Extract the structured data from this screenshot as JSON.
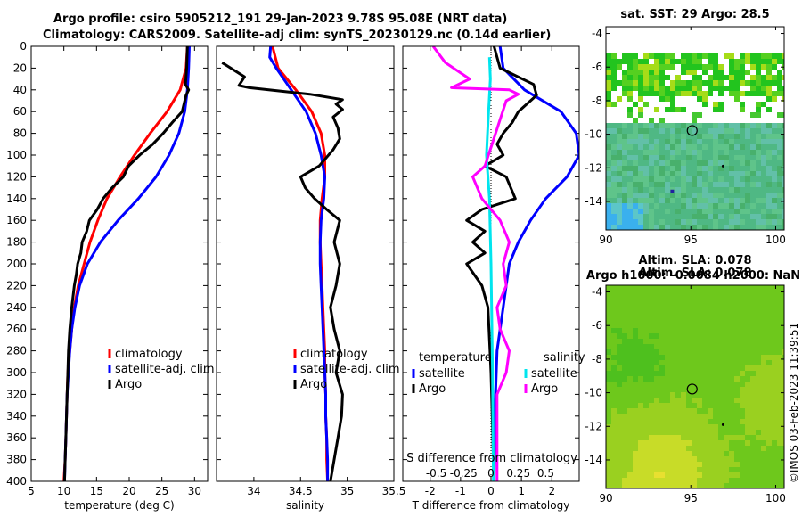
{
  "title": {
    "line1": "Argo profile: csiro 5905212_191 29-Jan-2023 9.78S 95.08E (NRT data)",
    "line2": "Climatology: CARS2009. Satellite-adj clim: synTS_20230129.nc (0.14d earlier)"
  },
  "stamp": "©IMOS 03-Feb-2023 11:39:51",
  "colors": {
    "climatology": "#ff0000",
    "satellite": "#0000ff",
    "argo": "#000000",
    "sal_satellite": "#00e5ee",
    "sal_argo": "#ff00ff"
  },
  "chart_data": [
    {
      "type": "line",
      "id": "temperature",
      "xlabel": "temperature (deg C)",
      "xlim": [
        5,
        32
      ],
      "xticks": [
        5,
        10,
        15,
        20,
        25,
        30
      ],
      "ylim": [
        0,
        400
      ],
      "yticks": [
        0,
        20,
        40,
        60,
        80,
        100,
        120,
        140,
        160,
        180,
        200,
        220,
        240,
        260,
        280,
        300,
        320,
        340,
        360,
        380,
        400
      ],
      "legend": [
        "climatology",
        "satellite-adj. clim",
        "Argo"
      ],
      "series": [
        {
          "name": "climatology",
          "color": "#ff0000",
          "points": [
            [
              28.9,
              0
            ],
            [
              28.7,
              20
            ],
            [
              27.8,
              40
            ],
            [
              25.8,
              60
            ],
            [
              23.2,
              80
            ],
            [
              20.8,
              100
            ],
            [
              18.6,
              120
            ],
            [
              16.6,
              140
            ],
            [
              15.2,
              160
            ],
            [
              14.0,
              180
            ],
            [
              13.1,
              200
            ],
            [
              12.2,
              220
            ],
            [
              11.6,
              240
            ],
            [
              11.2,
              260
            ],
            [
              10.9,
              280
            ],
            [
              10.6,
              300
            ],
            [
              10.5,
              320
            ],
            [
              10.4,
              340
            ],
            [
              10.3,
              360
            ],
            [
              10.2,
              380
            ],
            [
              10.0,
              400
            ]
          ]
        },
        {
          "name": "satellite-adj. clim",
          "color": "#0000ff",
          "points": [
            [
              29.2,
              0
            ],
            [
              29.1,
              20
            ],
            [
              28.9,
              40
            ],
            [
              28.5,
              60
            ],
            [
              27.6,
              80
            ],
            [
              26.1,
              100
            ],
            [
              24.1,
              120
            ],
            [
              21.4,
              140
            ],
            [
              18.3,
              160
            ],
            [
              15.6,
              180
            ],
            [
              13.6,
              200
            ],
            [
              12.4,
              220
            ],
            [
              11.7,
              240
            ],
            [
              11.2,
              260
            ],
            [
              10.9,
              280
            ],
            [
              10.7,
              300
            ],
            [
              10.5,
              320
            ],
            [
              10.4,
              340
            ],
            [
              10.3,
              360
            ],
            [
              10.2,
              380
            ],
            [
              10.1,
              400
            ]
          ]
        },
        {
          "name": "Argo",
          "color": "#000000",
          "points": [
            [
              28.9,
              0
            ],
            [
              28.8,
              20
            ],
            [
              28.6,
              35
            ],
            [
              29.1,
              40
            ],
            [
              28.7,
              45
            ],
            [
              28.1,
              60
            ],
            [
              26.6,
              70
            ],
            [
              25.2,
              80
            ],
            [
              23.6,
              90
            ],
            [
              21.6,
              100
            ],
            [
              19.9,
              110
            ],
            [
              19.1,
              120
            ],
            [
              17.4,
              130
            ],
            [
              16.0,
              140
            ],
            [
              15.1,
              150
            ],
            [
              13.9,
              160
            ],
            [
              13.5,
              170
            ],
            [
              12.8,
              180
            ],
            [
              12.6,
              190
            ],
            [
              12.1,
              200
            ],
            [
              11.9,
              210
            ],
            [
              11.6,
              220
            ],
            [
              11.2,
              240
            ],
            [
              10.9,
              260
            ],
            [
              10.7,
              280
            ],
            [
              10.6,
              300
            ],
            [
              10.5,
              320
            ],
            [
              10.4,
              340
            ],
            [
              10.3,
              360
            ],
            [
              10.2,
              380
            ],
            [
              10.1,
              400
            ]
          ]
        }
      ]
    },
    {
      "type": "line",
      "id": "salinity",
      "xlabel": "salinity",
      "xlim": [
        33.6,
        35.5
      ],
      "xticks": [
        34,
        34.5,
        35
      ],
      "xticklabels": [
        "34",
        "34.5",
        "35"
      ],
      "xticks_extra": [
        {
          "v": 35.5,
          "label": "35.5"
        }
      ],
      "ylim": [
        0,
        400
      ],
      "legend": [
        "climatology",
        "satellite-adj. clim",
        "Argo"
      ],
      "series": [
        {
          "name": "climatology",
          "color": "#ff0000",
          "points": [
            [
              34.2,
              0
            ],
            [
              34.26,
              20
            ],
            [
              34.45,
              40
            ],
            [
              34.62,
              60
            ],
            [
              34.72,
              80
            ],
            [
              34.76,
              100
            ],
            [
              34.76,
              120
            ],
            [
              34.73,
              140
            ],
            [
              34.71,
              160
            ],
            [
              34.71,
              180
            ],
            [
              34.72,
              200
            ],
            [
              34.73,
              220
            ],
            [
              34.74,
              240
            ],
            [
              34.75,
              260
            ],
            [
              34.76,
              280
            ],
            [
              34.76,
              300
            ],
            [
              34.77,
              320
            ],
            [
              34.77,
              340
            ],
            [
              34.78,
              360
            ],
            [
              34.78,
              380
            ],
            [
              34.79,
              400
            ]
          ]
        },
        {
          "name": "satellite-adj. clim",
          "color": "#0000ff",
          "points": [
            [
              34.18,
              0
            ],
            [
              34.17,
              10
            ],
            [
              34.24,
              20
            ],
            [
              34.4,
              40
            ],
            [
              34.56,
              60
            ],
            [
              34.66,
              80
            ],
            [
              34.72,
              100
            ],
            [
              34.76,
              120
            ],
            [
              34.75,
              140
            ],
            [
              34.72,
              160
            ],
            [
              34.71,
              180
            ],
            [
              34.71,
              200
            ],
            [
              34.72,
              220
            ],
            [
              34.73,
              240
            ],
            [
              34.74,
              260
            ],
            [
              34.75,
              280
            ],
            [
              34.76,
              300
            ],
            [
              34.77,
              320
            ],
            [
              34.77,
              340
            ],
            [
              34.78,
              360
            ],
            [
              34.79,
              380
            ],
            [
              34.79,
              400
            ]
          ]
        },
        {
          "name": "Argo",
          "color": "#000000",
          "points": [
            [
              33.66,
              15
            ],
            [
              33.9,
              28
            ],
            [
              33.84,
              36
            ],
            [
              33.95,
              38
            ],
            [
              34.6,
              44
            ],
            [
              34.95,
              49
            ],
            [
              34.88,
              53
            ],
            [
              34.95,
              58
            ],
            [
              34.85,
              65
            ],
            [
              34.9,
              75
            ],
            [
              34.92,
              85
            ],
            [
              34.85,
              95
            ],
            [
              34.7,
              110
            ],
            [
              34.5,
              120
            ],
            [
              34.55,
              130
            ],
            [
              34.65,
              140
            ],
            [
              34.78,
              150
            ],
            [
              34.92,
              160
            ],
            [
              34.86,
              180
            ],
            [
              34.92,
              200
            ],
            [
              34.88,
              220
            ],
            [
              34.82,
              240
            ],
            [
              34.86,
              260
            ],
            [
              34.92,
              280
            ],
            [
              34.88,
              300
            ],
            [
              34.95,
              320
            ],
            [
              34.94,
              340
            ],
            [
              34.9,
              360
            ],
            [
              34.86,
              380
            ],
            [
              34.82,
              400
            ]
          ]
        }
      ]
    },
    {
      "type": "line",
      "id": "difference",
      "xlabel": "T difference from climatology",
      "xlabel_top": "S difference from climatology",
      "xlim": [
        -2.9,
        2.9
      ],
      "xticks": [
        -2,
        -1,
        0,
        1,
        2
      ],
      "top_ticklabels": [
        "-0.5",
        "-0.25",
        "0",
        "0.25",
        "0.5"
      ],
      "ylim": [
        0,
        400
      ],
      "legend_left": {
        "header": "temperature",
        "items": [
          "satellite",
          "Argo"
        ]
      },
      "legend_right": {
        "header": "salinity",
        "items": [
          "satellite",
          "Argo"
        ]
      },
      "series": [
        {
          "name": "temperature satellite",
          "color": "#0000ff",
          "points": [
            [
              0.3,
              0
            ],
            [
              0.4,
              20
            ],
            [
              1.1,
              40
            ],
            [
              2.3,
              60
            ],
            [
              2.8,
              80
            ],
            [
              2.9,
              100
            ],
            [
              2.5,
              120
            ],
            [
              1.8,
              140
            ],
            [
              1.3,
              160
            ],
            [
              0.9,
              180
            ],
            [
              0.6,
              200
            ],
            [
              0.4,
              240
            ],
            [
              0.2,
              280
            ],
            [
              0.15,
              320
            ],
            [
              0.1,
              400
            ]
          ]
        },
        {
          "name": "temperature Argo",
          "color": "#000000",
          "points": [
            [
              0.1,
              0
            ],
            [
              0.3,
              20
            ],
            [
              1.4,
              35
            ],
            [
              1.5,
              45
            ],
            [
              0.9,
              60
            ],
            [
              0.7,
              70
            ],
            [
              0.4,
              80
            ],
            [
              0.2,
              90
            ],
            [
              0.4,
              100
            ],
            [
              -0.2,
              110
            ],
            [
              0.5,
              120
            ],
            [
              0.8,
              140
            ],
            [
              -0.3,
              150
            ],
            [
              -0.8,
              160
            ],
            [
              -0.2,
              170
            ],
            [
              -0.6,
              180
            ],
            [
              -0.2,
              190
            ],
            [
              -0.8,
              200
            ],
            [
              -0.3,
              220
            ],
            [
              -0.1,
              240
            ],
            [
              0.0,
              300
            ],
            [
              0.1,
              400
            ]
          ]
        },
        {
          "name": "salinity satellite",
          "color": "#00e5ee",
          "points": [
            [
              -0.05,
              10
            ],
            [
              -0.02,
              30
            ],
            [
              -0.08,
              60
            ],
            [
              -0.15,
              100
            ],
            [
              -0.05,
              140
            ],
            [
              0.0,
              200
            ],
            [
              0.05,
              300
            ],
            [
              0.08,
              400
            ]
          ]
        },
        {
          "name": "salinity Argo",
          "color": "#ff00ff",
          "points": [
            [
              -1.9,
              0
            ],
            [
              -1.5,
              15
            ],
            [
              -0.7,
              30
            ],
            [
              -1.3,
              38
            ],
            [
              0.6,
              40
            ],
            [
              0.9,
              44
            ],
            [
              0.5,
              50
            ],
            [
              -0.2,
              110
            ],
            [
              -0.6,
              120
            ],
            [
              -0.3,
              140
            ],
            [
              0.3,
              160
            ],
            [
              0.6,
              180
            ],
            [
              0.4,
              200
            ],
            [
              0.5,
              220
            ],
            [
              0.2,
              240
            ],
            [
              0.3,
              260
            ],
            [
              0.6,
              280
            ],
            [
              0.5,
              300
            ],
            [
              0.2,
              320
            ],
            [
              0.2,
              400
            ]
          ]
        }
      ]
    },
    {
      "type": "heatmap",
      "id": "sst_map",
      "title": "sat. SST: 29 Argo: 28.5",
      "xlim": [
        90,
        100.5
      ],
      "ylim": [
        -15.7,
        -3.6
      ],
      "xticks": [
        90,
        95,
        100
      ],
      "yticks": [
        -4,
        -6,
        -8,
        -10,
        -12,
        -14
      ],
      "argo_position": [
        95.08,
        -9.78
      ]
    },
    {
      "type": "heatmap",
      "id": "sla_map",
      "title": "Altim. SLA: 0.078",
      "subtitle": "Argo h1000: -0.0084 h2000: NaN",
      "xlim": [
        90,
        100.5
      ],
      "ylim": [
        -15.7,
        -3.6
      ],
      "xticks": [
        90,
        95,
        100
      ],
      "yticks": [
        -4,
        -6,
        -8,
        -10,
        -12,
        -14
      ],
      "argo_position": [
        95.08,
        -9.78
      ]
    }
  ]
}
